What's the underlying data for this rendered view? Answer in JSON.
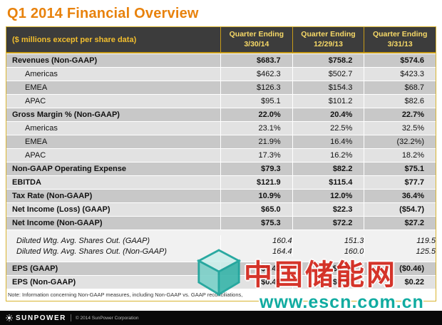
{
  "title": "Q1 2014 Financial Overview",
  "table": {
    "header": {
      "label": "($ millions except per share data)",
      "columns": [
        {
          "line1": "Quarter Ending",
          "line2": "3/30/14"
        },
        {
          "line1": "Quarter Ending",
          "line2": "12/29/13"
        },
        {
          "line1": "Quarter Ending",
          "line2": "3/31/13"
        }
      ]
    },
    "rows": [
      {
        "label": "Revenues (Non-GAAP)",
        "values": [
          "$683.7",
          "$758.2",
          "$574.6"
        ],
        "style": "section dark"
      },
      {
        "label": "Americas",
        "values": [
          "$462.3",
          "$502.7",
          "$423.3"
        ],
        "style": "sub light"
      },
      {
        "label": "EMEA",
        "values": [
          "$126.3",
          "$154.3",
          "$68.7"
        ],
        "style": "sub dark"
      },
      {
        "label": "APAC",
        "values": [
          "$95.1",
          "$101.2",
          "$82.6"
        ],
        "style": "sub light"
      },
      {
        "label": "Gross Margin % (Non-GAAP)",
        "values": [
          "22.0%",
          "20.4%",
          "22.7%"
        ],
        "style": "section dark"
      },
      {
        "label": "Americas",
        "values": [
          "23.1%",
          "22.5%",
          "32.5%"
        ],
        "style": "sub light"
      },
      {
        "label": "EMEA",
        "values": [
          "21.9%",
          "16.4%",
          "(32.2%)"
        ],
        "style": "sub dark"
      },
      {
        "label": "APAC",
        "values": [
          "17.3%",
          "16.2%",
          "18.2%"
        ],
        "style": "sub light"
      },
      {
        "label": "Non-GAAP Operating Expense",
        "values": [
          "$79.3",
          "$82.2",
          "$75.1"
        ],
        "style": "section dark"
      },
      {
        "label": "EBITDA",
        "values": [
          "$121.9",
          "$115.4",
          "$77.7"
        ],
        "style": "section light"
      },
      {
        "label": "Tax Rate (Non-GAAP)",
        "values": [
          "10.9%",
          "12.0%",
          "36.4%"
        ],
        "style": "section dark"
      },
      {
        "label": "Net Income (Loss) (GAAP)",
        "values": [
          "$65.0",
          "$22.3",
          "($54.7)"
        ],
        "style": "section light"
      },
      {
        "label": "Net Income (Non-GAAP)",
        "values": [
          "$75.3",
          "$72.2",
          "$27.2"
        ],
        "style": "section dark"
      },
      {
        "label": "Diluted Wtg. Avg. Shares Out. (GAAP)",
        "values": [
          "160.4",
          "151.3",
          "119.5"
        ],
        "style": "shares shares-top"
      },
      {
        "label": "Diluted Wtg. Avg. Shares Out. (Non-GAAP)",
        "values": [
          "164.4",
          "160.0",
          "125.5"
        ],
        "style": "shares shares-bottom"
      },
      {
        "label": "EPS  (GAAP)",
        "values": [
          "$0.42",
          "$0.15",
          "($0.46)"
        ],
        "style": "section dark"
      },
      {
        "label": "EPS  (Non-GAAP)",
        "values": [
          "$0.49",
          "$0.47",
          "$0.22"
        ],
        "style": "section light"
      }
    ]
  },
  "note": "Note: Information concerning Non-GAAP measures, including Non-GAAP vs. GAAP reconciliations,",
  "footer": {
    "logo": "SUNPOWER",
    "copyright": "© 2014 SunPower Corporation"
  },
  "watermark": {
    "text": "中国储能网",
    "url": "www.escn.com.cn"
  }
}
